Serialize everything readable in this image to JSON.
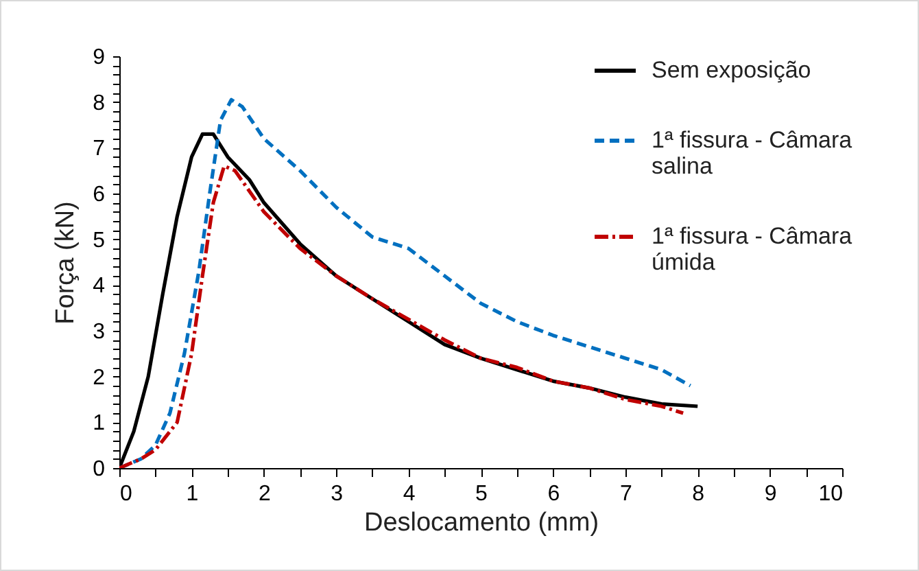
{
  "chart_data": {
    "type": "line",
    "xlabel": "Deslocamento (mm)",
    "ylabel": "Força (kN)",
    "xlim": [
      0,
      10
    ],
    "ylim": [
      0,
      9
    ],
    "xticks": [
      0,
      {
        "value": 0.5,
        "label": null
      },
      1,
      {
        "value": 1.5,
        "label": null
      },
      2,
      {
        "value": 2.5,
        "label": null
      },
      3,
      {
        "value": 3.5,
        "label": null
      },
      4,
      {
        "value": 4.5,
        "label": null
      },
      5,
      {
        "value": 5.5,
        "label": null
      },
      6,
      {
        "value": 6.5,
        "label": null
      },
      7,
      {
        "value": 7.5,
        "label": null
      },
      8,
      {
        "value": 8.5,
        "label": null
      },
      9,
      {
        "value": 9.5,
        "label": null
      },
      10
    ],
    "yticks": [
      0,
      {
        "value": 0.2,
        "label": null
      },
      {
        "value": 0.4,
        "label": null
      },
      {
        "value": 0.6,
        "label": null
      },
      {
        "value": 0.8,
        "label": null
      },
      1,
      {
        "value": 1.2,
        "label": null
      },
      {
        "value": 1.4,
        "label": null
      },
      {
        "value": 1.6,
        "label": null
      },
      {
        "value": 1.8,
        "label": null
      },
      2,
      {
        "value": 2.2,
        "label": null
      },
      {
        "value": 2.4,
        "label": null
      },
      {
        "value": 2.6,
        "label": null
      },
      {
        "value": 2.8,
        "label": null
      },
      3,
      {
        "value": 3.2,
        "label": null
      },
      {
        "value": 3.4,
        "label": null
      },
      {
        "value": 3.6,
        "label": null
      },
      {
        "value": 3.8,
        "label": null
      },
      4,
      {
        "value": 4.2,
        "label": null
      },
      {
        "value": 4.4,
        "label": null
      },
      {
        "value": 4.6,
        "label": null
      },
      {
        "value": 4.8,
        "label": null
      },
      5,
      {
        "value": 5.2,
        "label": null
      },
      {
        "value": 5.4,
        "label": null
      },
      {
        "value": 5.6,
        "label": null
      },
      {
        "value": 5.8,
        "label": null
      },
      6,
      {
        "value": 6.2,
        "label": null
      },
      {
        "value": 6.4,
        "label": null
      },
      {
        "value": 6.6,
        "label": null
      },
      {
        "value": 6.8,
        "label": null
      },
      7,
      {
        "value": 7.2,
        "label": null
      },
      {
        "value": 7.4,
        "label": null
      },
      {
        "value": 7.6,
        "label": null
      },
      {
        "value": 7.8,
        "label": null
      },
      8,
      {
        "value": 8.2,
        "label": null
      },
      {
        "value": 8.4,
        "label": null
      },
      {
        "value": 8.6,
        "label": null
      },
      {
        "value": 8.8,
        "label": null
      },
      9
    ],
    "grid": false,
    "legend": "top right",
    "marker": "none",
    "series": [
      {
        "name": "Sem exposição",
        "color": "#000000",
        "line_style": "solid",
        "x": [
          0,
          0.2,
          0.4,
          0.6,
          0.8,
          1.0,
          1.15,
          1.3,
          1.5,
          1.8,
          2.0,
          2.5,
          3,
          3.5,
          4,
          4.5,
          5,
          5.5,
          6,
          6.5,
          7,
          7.5,
          8
        ],
        "values": [
          0,
          0.8,
          2,
          3.8,
          5.5,
          6.8,
          7.3,
          7.3,
          6.8,
          6.3,
          5.8,
          4.9,
          4.2,
          3.7,
          3.2,
          2.7,
          2.4,
          2.15,
          1.9,
          1.75,
          1.55,
          1.4,
          1.35
        ]
      },
      {
        "name": "1ª fissura - Câmara salina",
        "color": "#0070c0",
        "line_style": "dashed",
        "x": [
          0,
          0.3,
          0.5,
          0.7,
          0.9,
          1.1,
          1.25,
          1.4,
          1.55,
          1.7,
          2,
          2.5,
          3,
          3.5,
          4,
          4.5,
          5,
          5.5,
          6,
          6.5,
          7,
          7.5,
          7.9
        ],
        "values": [
          0,
          0.2,
          0.5,
          1.2,
          2.5,
          4.3,
          6,
          7.6,
          8.05,
          7.9,
          7.2,
          6.5,
          5.7,
          5.05,
          4.8,
          4.2,
          3.6,
          3.2,
          2.9,
          2.65,
          2.4,
          2.15,
          1.8
        ]
      },
      {
        "name": "1ª fissura - Câmara úmida",
        "color": "#c00000",
        "line_style": "dashdot",
        "x": [
          0,
          0.3,
          0.5,
          0.8,
          1,
          1.15,
          1.3,
          1.45,
          1.6,
          2,
          2.5,
          3,
          3.5,
          4,
          4.5,
          5,
          5.5,
          6,
          6.5,
          7,
          7.5,
          7.8
        ],
        "values": [
          0,
          0.2,
          0.4,
          1,
          2.5,
          4.2,
          5.8,
          6.6,
          6.5,
          5.6,
          4.8,
          4.2,
          3.7,
          3.25,
          2.8,
          2.4,
          2.2,
          1.9,
          1.75,
          1.5,
          1.35,
          1.2
        ]
      }
    ]
  }
}
